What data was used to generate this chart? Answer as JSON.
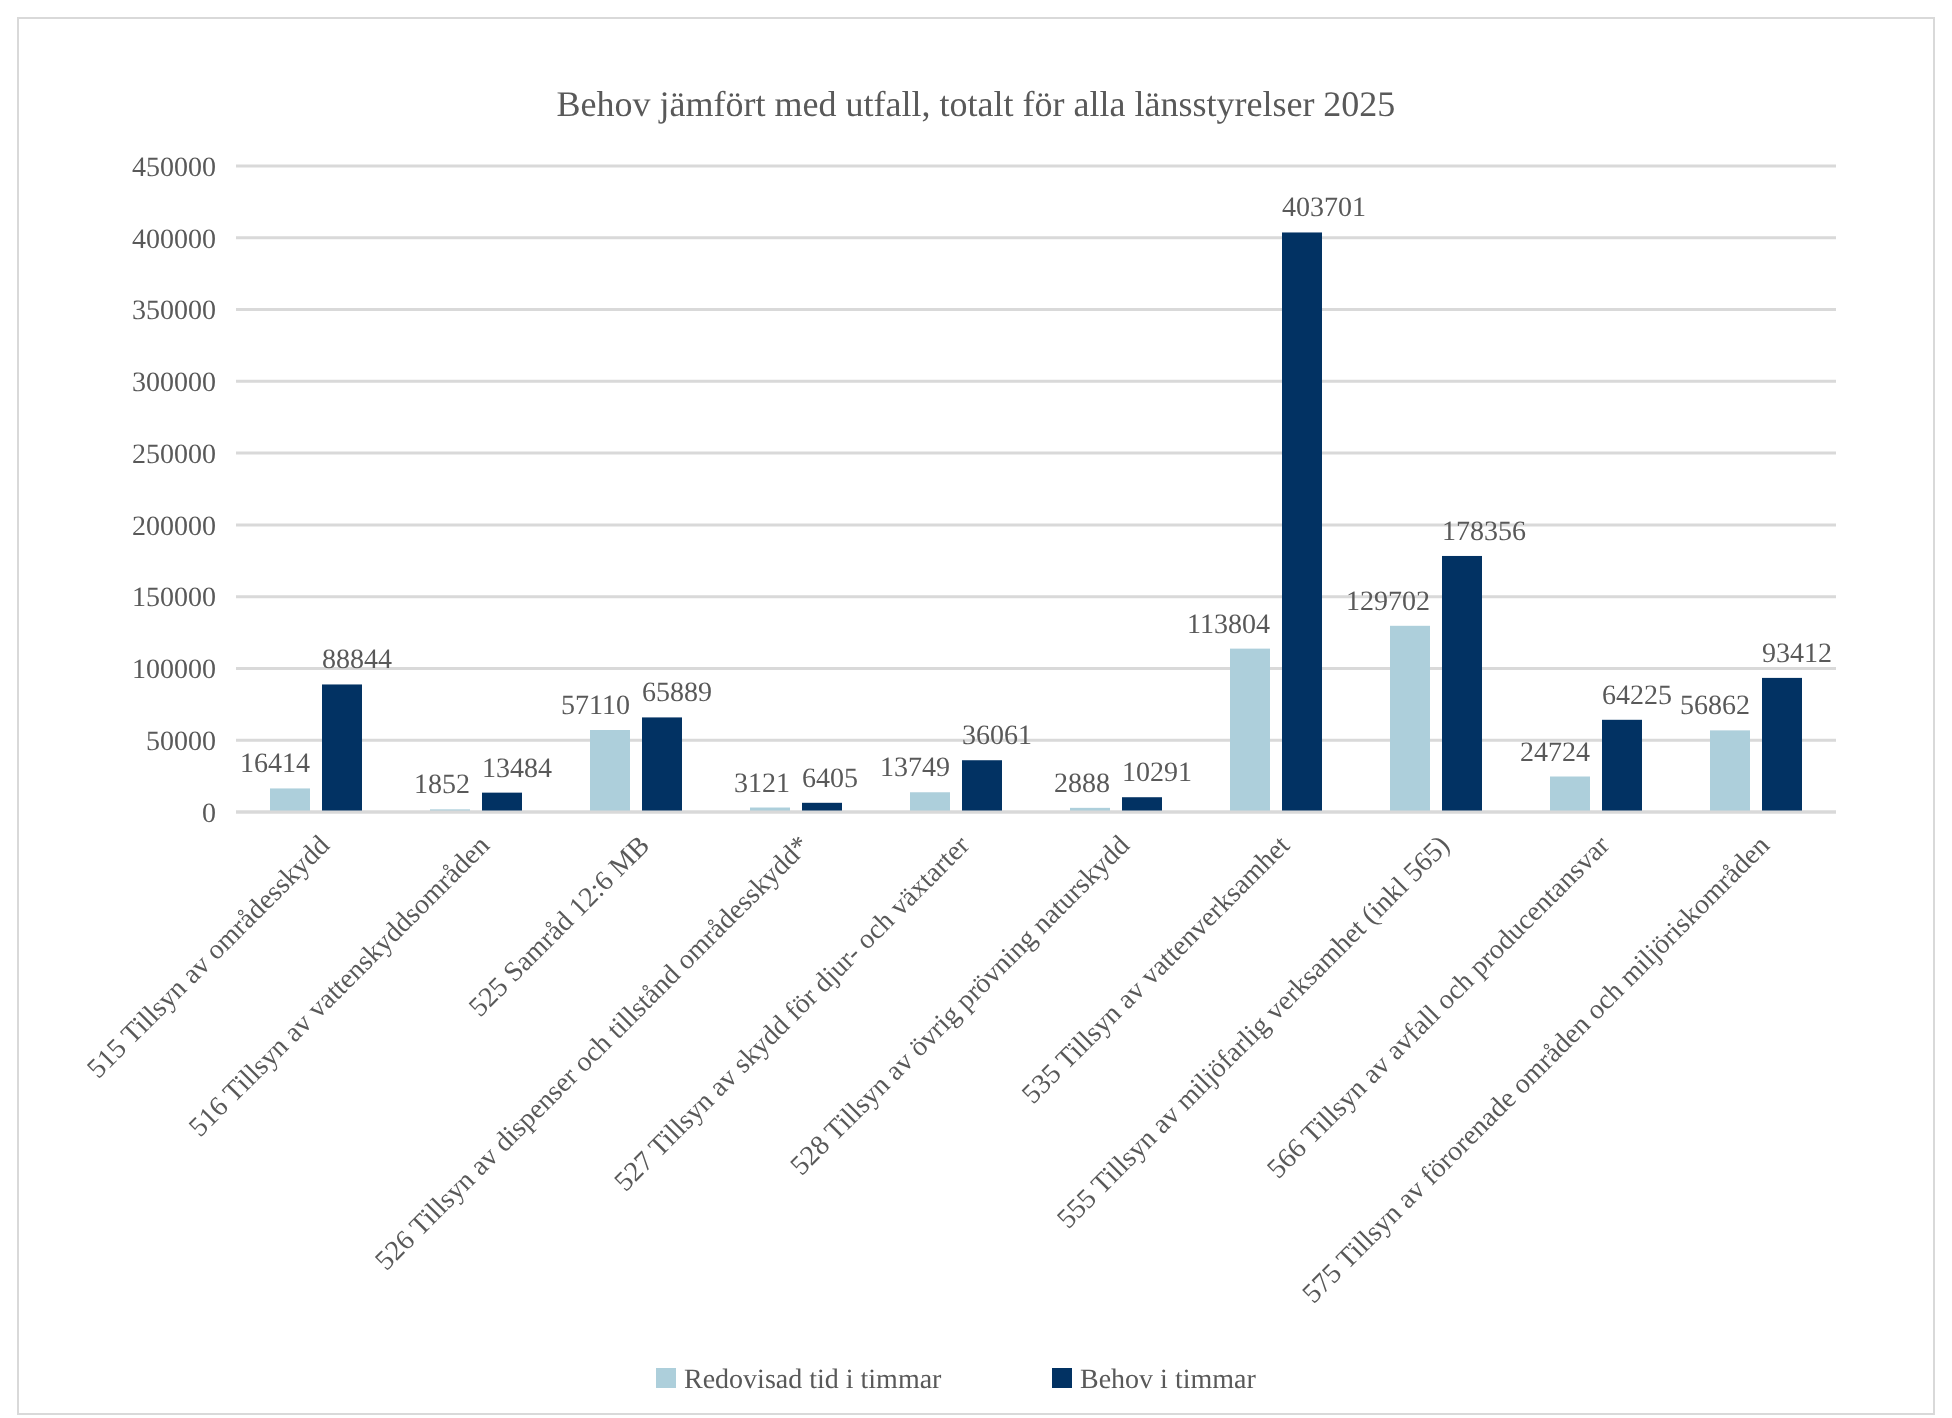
{
  "chart_data": {
    "type": "bar",
    "title": "Behov jämfört med utfall, totalt för alla länsstyrelser 2025",
    "categories": [
      "515 Tillsyn av områdesskydd",
      "516 Tillsyn av vattenskyddsområden",
      "525 Samråd 12:6 MB",
      "526 Tillsyn av dispenser och tillstånd områdesskydd*",
      "527 Tillsyn av skydd för djur- och växtarter",
      "528 Tillsyn av övrig prövning naturskydd",
      "535 Tillsyn av vattenverksamhet",
      "555 Tillsyn av miljöfarlig verksamhet (inkl 565)",
      "566 Tillsyn av avfall och producentansvar",
      "575 Tillsyn av förorenade områden och miljöriskområden"
    ],
    "series": [
      {
        "name": "Redovisad tid i timmar",
        "color": "#adcfdb",
        "values": [
          16414,
          1852,
          57110,
          3121,
          13749,
          2888,
          113804,
          129702,
          24724,
          56862
        ]
      },
      {
        "name": "Behov i timmar",
        "color": "#023263",
        "values": [
          88844,
          13484,
          65889,
          6405,
          36061,
          10291,
          403701,
          178356,
          64225,
          93412
        ]
      }
    ],
    "ylim": [
      0,
      450000
    ],
    "yticks": [
      0,
      50000,
      100000,
      150000,
      200000,
      250000,
      300000,
      350000,
      400000,
      450000
    ],
    "grid": "y",
    "legend": "bottom",
    "data_labels": true
  }
}
